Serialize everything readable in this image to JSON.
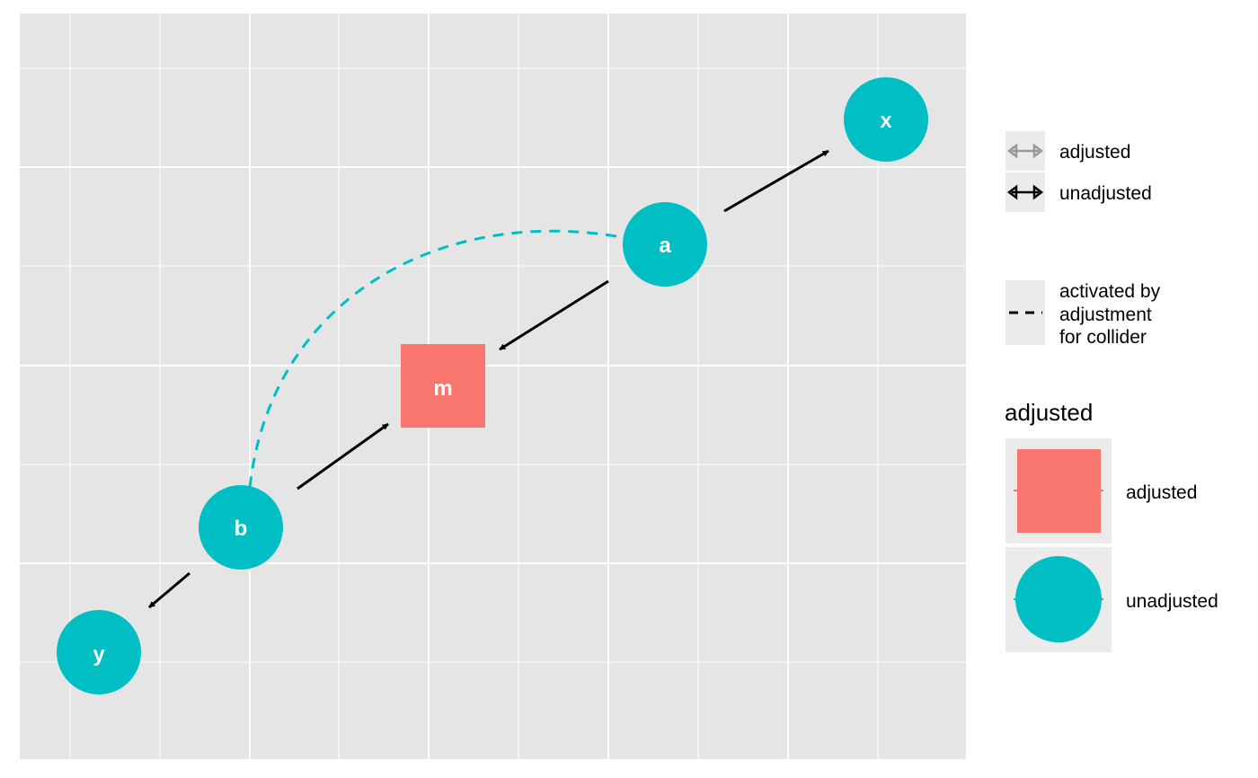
{
  "diagram": {
    "nodes": [
      {
        "id": "x",
        "label": "x",
        "status": "unadjusted"
      },
      {
        "id": "a",
        "label": "a",
        "status": "unadjusted"
      },
      {
        "id": "m",
        "label": "m",
        "status": "adjusted"
      },
      {
        "id": "b",
        "label": "b",
        "status": "unadjusted"
      },
      {
        "id": "y",
        "label": "y",
        "status": "unadjusted"
      }
    ],
    "edges": [
      {
        "from": "a",
        "to": "x",
        "style": "solid"
      },
      {
        "from": "a",
        "to": "m",
        "style": "solid"
      },
      {
        "from": "b",
        "to": "m",
        "style": "solid"
      },
      {
        "from": "b",
        "to": "y",
        "style": "solid"
      },
      {
        "from": "a",
        "to": "b",
        "style": "dashed",
        "meaning": "activated by adjustment for collider"
      }
    ]
  },
  "legend": {
    "edge_keys": {
      "adjusted": "adjusted",
      "unadjusted": "unadjusted"
    },
    "dashed_key": {
      "line1": "activated by",
      "line2": "adjustment",
      "line3": "for collider"
    },
    "fill_legend": {
      "title": "adjusted",
      "adjusted": "adjusted",
      "unadjusted": "unadjusted"
    }
  },
  "colors": {
    "adjusted": "#F8766D",
    "unadjusted": "#00BFC4",
    "panel_background": "#E5E5E5",
    "gridline": "#FFFFFF",
    "edge": "#000000",
    "adjusted_edge_key": "#9A9A9A",
    "legend_key_background": "#EBEBEB"
  }
}
